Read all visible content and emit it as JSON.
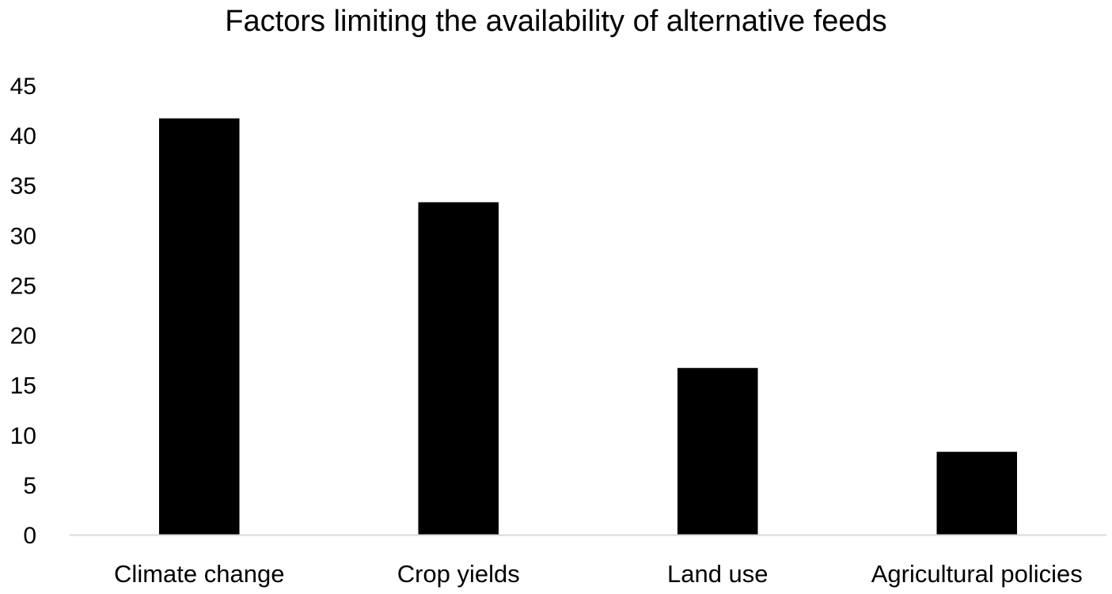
{
  "chart_data": {
    "type": "bar",
    "title": "Factors limiting the availability of alternative feeds",
    "xlabel": "",
    "ylabel": "",
    "categories": [
      "Climate change",
      "Crop yields",
      "Land use",
      "Agricultural policies"
    ],
    "values": [
      41.7,
      33.3,
      16.7,
      8.3
    ],
    "ylim": [
      0,
      45
    ],
    "yticks": [
      "0",
      "5",
      "10",
      "15",
      "20",
      "25",
      "30",
      "35",
      "40",
      "45"
    ],
    "grid": false,
    "legend": "none",
    "bar_color": "#000000",
    "axis_color": "#d9d9d9"
  }
}
